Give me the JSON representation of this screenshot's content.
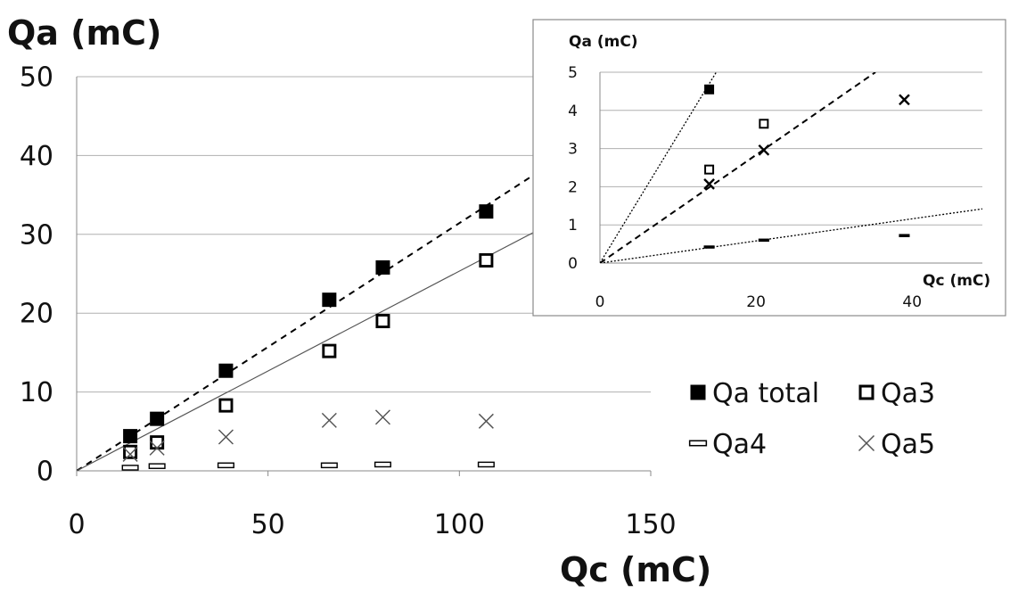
{
  "chart_data": [
    {
      "type": "scatter",
      "xlabel": "Qc (mC)",
      "ylabel": "Qa (mC)",
      "xlim": [
        0,
        150
      ],
      "ylim": [
        0,
        50
      ],
      "xticks": [
        "0",
        "50",
        "100",
        "150"
      ],
      "yticks": [
        "0",
        "10",
        "20",
        "30",
        "40",
        "50"
      ],
      "grid": "horizontal",
      "legend_position": "right",
      "series": [
        {
          "name": "Qa total",
          "marker": "filled-square",
          "points": [
            [
              14,
              4.4
            ],
            [
              21,
              6.6
            ],
            [
              39,
              12.7
            ],
            [
              66,
              21.7
            ],
            [
              80,
              25.8
            ],
            [
              107,
              32.9
            ]
          ]
        },
        {
          "name": "Qa3",
          "marker": "open-square",
          "points": [
            [
              14,
              2.4
            ],
            [
              21,
              3.6
            ],
            [
              39,
              8.3
            ],
            [
              66,
              15.2
            ],
            [
              80,
              19.0
            ],
            [
              107,
              26.7
            ]
          ]
        },
        {
          "name": "Qa4",
          "marker": "dash",
          "points": [
            [
              14,
              0.4
            ],
            [
              21,
              0.6
            ],
            [
              39,
              0.7
            ],
            [
              66,
              0.7
            ],
            [
              80,
              0.8
            ],
            [
              107,
              0.8
            ]
          ]
        },
        {
          "name": "Qa5",
          "marker": "cross",
          "points": [
            [
              14,
              2.1
            ],
            [
              21,
              2.9
            ],
            [
              39,
              4.3
            ],
            [
              66,
              6.4
            ],
            [
              80,
              6.8
            ],
            [
              107,
              6.3
            ]
          ]
        }
      ],
      "trendlines": [
        {
          "series": "Qa total",
          "style": "dashed",
          "from": [
            0,
            0
          ],
          "to": [
            140,
            44
          ]
        },
        {
          "series": "Qa3",
          "style": "solid",
          "from": [
            0,
            0
          ],
          "to": [
            150,
            38
          ]
        }
      ]
    },
    {
      "type": "scatter",
      "inset": true,
      "xlabel": "Qc (mC)",
      "ylabel": "Qa (mC)",
      "xlim": [
        0,
        49
      ],
      "ylim": [
        0,
        5
      ],
      "xticks": [
        "0",
        "20",
        "40"
      ],
      "yticks": [
        "0",
        "1",
        "2",
        "3",
        "4",
        "5"
      ],
      "grid": "horizontal",
      "series": [
        {
          "name": "Qa total",
          "marker": "filled-square",
          "points": [
            [
              14,
              4.55
            ]
          ]
        },
        {
          "name": "Qa3",
          "marker": "open-square",
          "points": [
            [
              14,
              2.45
            ],
            [
              21,
              3.65
            ]
          ]
        },
        {
          "name": "Qa4",
          "marker": "dash",
          "points": [
            [
              14,
              0.42
            ],
            [
              21,
              0.6
            ],
            [
              39,
              0.72
            ]
          ]
        },
        {
          "name": "Qa5",
          "marker": "cross",
          "points": [
            [
              14,
              2.07
            ],
            [
              21,
              2.96
            ],
            [
              39,
              4.28
            ]
          ]
        }
      ],
      "trendlines": [
        {
          "series": "Qa total",
          "style": "dotted",
          "from": [
            0,
            0
          ],
          "to": [
            14.9,
            5
          ]
        },
        {
          "series": "Qa5",
          "style": "dashed",
          "from": [
            0,
            0
          ],
          "to": [
            35.3,
            5
          ]
        },
        {
          "series": "Qa4",
          "style": "dotted",
          "from": [
            0,
            0
          ],
          "to": [
            49,
            1.42
          ]
        }
      ]
    }
  ]
}
